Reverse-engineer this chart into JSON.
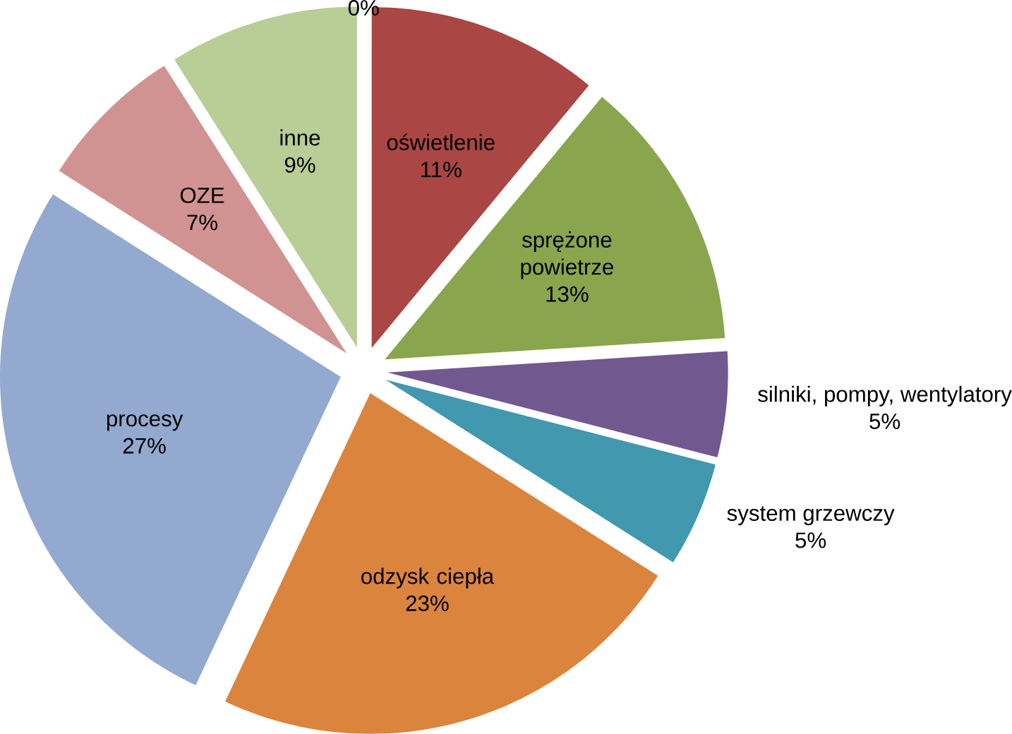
{
  "chart_data": {
    "type": "pie",
    "categories": [
      "oświetlenie",
      "sprężone powietrze",
      "silniki, pompy, wentylatory",
      "system grzewczy",
      "odzysk ciepła",
      "procesy",
      "OZE",
      "inne",
      null
    ],
    "values": [
      11,
      13,
      5,
      5,
      23,
      27,
      7,
      9,
      0
    ],
    "colors": [
      "#aa4643",
      "#89a54e",
      "#71588f",
      "#4198af",
      "#db843d",
      "#93a9cf",
      "#d19392",
      "#b9cd96",
      "#4572a7"
    ],
    "value_labels": [
      "11%",
      "13%",
      "5%",
      "5%",
      "23%",
      "27%",
      "7%",
      "9%",
      "0%"
    ]
  }
}
